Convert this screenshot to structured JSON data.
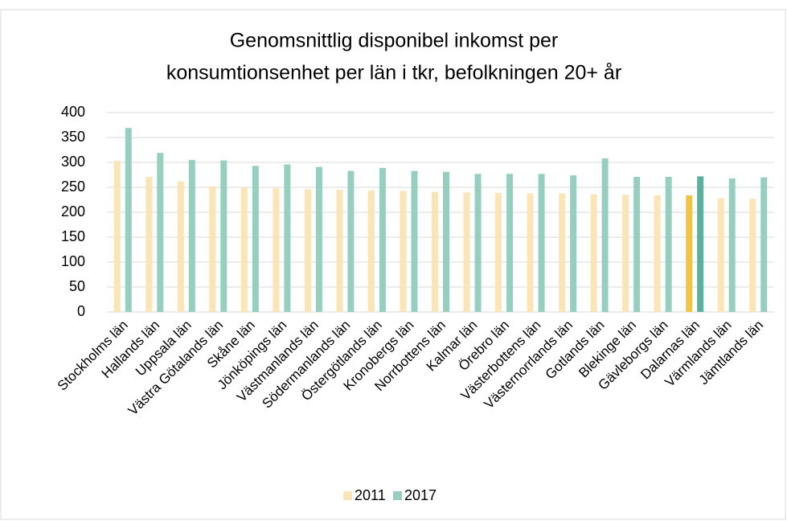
{
  "chart_data": {
    "type": "bar",
    "title": [
      "Genomsnittlig disponibel inkomst per",
      "konsumtionsenhet per län i tkr, befolkningen 20+ år"
    ],
    "categories": [
      "Stockholms län",
      "Hallands län",
      "Uppsala län",
      "Västra Götalands län",
      "Skåne län",
      "Jönköpings län",
      "Västmanlands län",
      "Södermanlands län",
      "Östergötlands län",
      "Kronobergs län",
      "Norrbottens län",
      "Kalmar län",
      "Örebro län",
      "Västerbottens län",
      "Västernorrlands län",
      "Gotlands län",
      "Blekinge län",
      "Gävleborgs län",
      "Dalarnas län",
      "Värmlands län",
      "Jämtlands län"
    ],
    "series": [
      {
        "name": "2011",
        "color": "#fbe5b6",
        "colors": [
          "#fbe5b6",
          "#fbe5b6",
          "#fbe5b6",
          "#fbe5b6",
          "#fbe5b6",
          "#fbe5b6",
          "#fbe5b6",
          "#fbe5b6",
          "#fbe5b6",
          "#fbe5b6",
          "#fbe5b6",
          "#fbe5b6",
          "#fbe5b6",
          "#fbe5b6",
          "#fbe5b6",
          "#fbe5b6",
          "#fbe5b6",
          "#fbe5b6",
          "#f2c443",
          "#fbe5b6",
          "#fbe5b6"
        ],
        "values": [
          303,
          271,
          262,
          252,
          250,
          248,
          246,
          245,
          244,
          243,
          241,
          240,
          239,
          238,
          238,
          236,
          235,
          234,
          234,
          228,
          227
        ]
      },
      {
        "name": "2017",
        "color": "#96cfc0",
        "colors": [
          "#96cfc0",
          "#96cfc0",
          "#96cfc0",
          "#96cfc0",
          "#96cfc0",
          "#96cfc0",
          "#96cfc0",
          "#96cfc0",
          "#96cfc0",
          "#96cfc0",
          "#96cfc0",
          "#96cfc0",
          "#96cfc0",
          "#96cfc0",
          "#96cfc0",
          "#96cfc0",
          "#96cfc0",
          "#96cfc0",
          "#5bb09c",
          "#96cfc0",
          "#96cfc0"
        ],
        "values": [
          369,
          319,
          305,
          304,
          293,
          296,
          291,
          283,
          289,
          283,
          281,
          277,
          277,
          277,
          274,
          308,
          271,
          271,
          272,
          268,
          270
        ]
      }
    ],
    "ylim": [
      0,
      400
    ],
    "yticks": [
      0,
      50,
      100,
      150,
      200,
      250,
      300,
      350,
      400
    ],
    "grid": true,
    "legend": "bottom"
  }
}
